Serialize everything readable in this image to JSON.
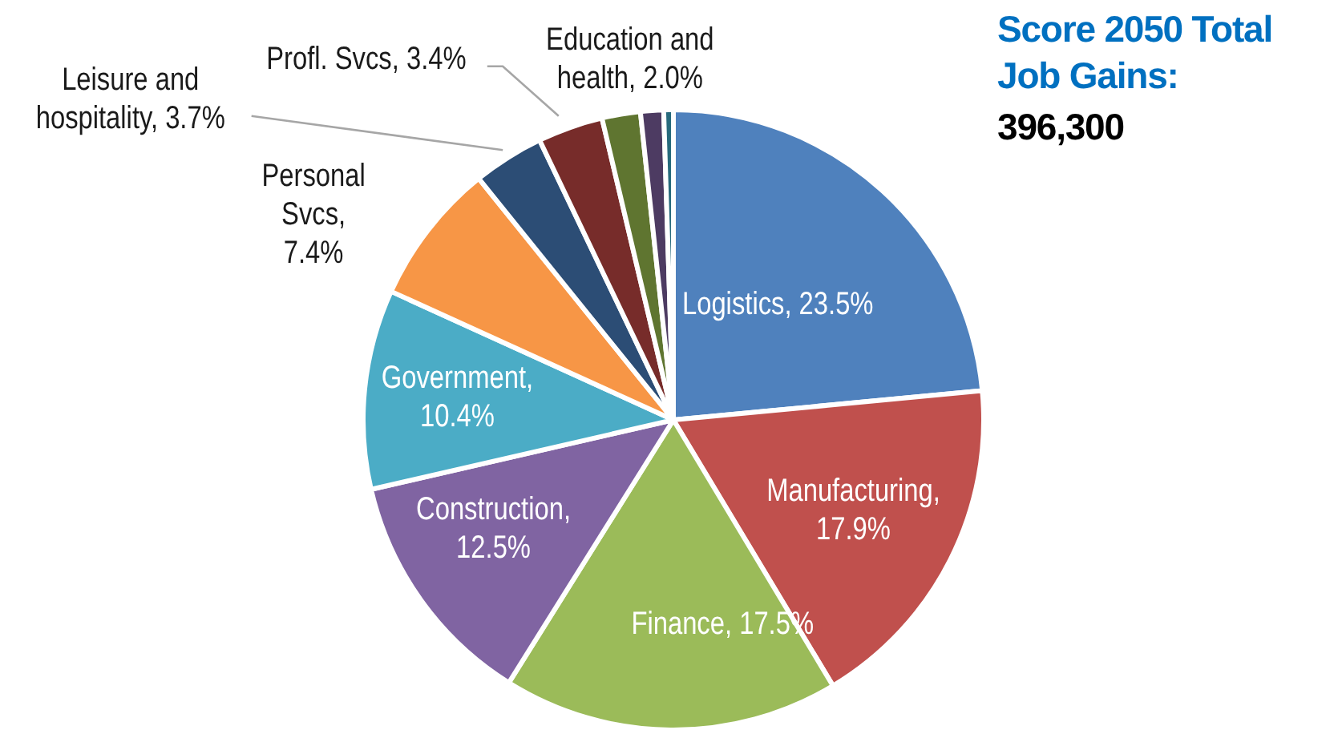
{
  "chart_data": {
    "type": "pie",
    "title": "Score 2050 Total Job Gains:",
    "subtitle": "396,300",
    "categories": [
      "Logistics, 23.5%",
      "Manufacturing, 17.9%",
      "Finance, 17.5%",
      "Construction, 12.5%",
      "Government, 10.4%",
      "Personal Svcs, 7.4%",
      "Leisure and hospitality, 3.7%",
      "Profl. Svcs, 3.4%",
      "Education and health, 2.0%",
      null,
      null
    ],
    "values": [
      23.5,
      17.9,
      17.5,
      12.5,
      10.4,
      7.4,
      3.7,
      3.4,
      2.0,
      1.2,
      0.5
    ],
    "colors": [
      "#4f81bd",
      "#c0504d",
      "#9bbb59",
      "#8064a2",
      "#4bacc6",
      "#f79646",
      "#2c4d75",
      "#772c2a",
      "#5f7530",
      "#4d3b62",
      "#276a7c"
    ],
    "legend": false
  }
}
